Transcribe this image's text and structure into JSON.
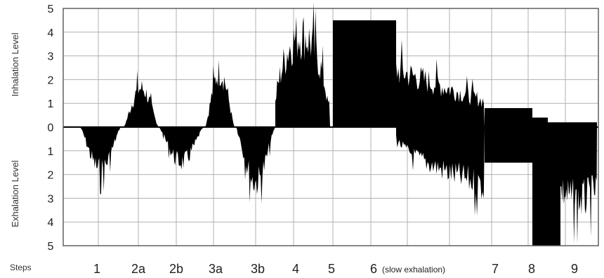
{
  "chart_data": {
    "type": "area",
    "ylabel_top": "Inhalation Level",
    "ylabel_bottom": "Exhalation Level",
    "xlabel": "Steps",
    "inhalation_ticks": [
      "5",
      "4",
      "3",
      "2",
      "1",
      "0"
    ],
    "exhalation_ticks": [
      "1",
      "2",
      "3",
      "4",
      "5"
    ],
    "ylim_inhalation": [
      0,
      5
    ],
    "ylim_exhalation": [
      0,
      5
    ],
    "grid": true,
    "steps": [
      {
        "label": "1",
        "note": ""
      },
      {
        "label": "2a",
        "note": ""
      },
      {
        "label": "2b",
        "note": ""
      },
      {
        "label": "3a",
        "note": ""
      },
      {
        "label": "3b",
        "note": ""
      },
      {
        "label": "4",
        "note": ""
      },
      {
        "label": "5",
        "note": ""
      },
      {
        "label": "6",
        "note": "(slow exhalation)"
      },
      {
        "label": "7",
        "note": ""
      },
      {
        "label": "8",
        "note": ""
      },
      {
        "label": "9",
        "note": ""
      }
    ],
    "segments": [
      {
        "step": "1",
        "direction": "exhalation",
        "peak": 2.3
      },
      {
        "step": "2a",
        "direction": "inhalation",
        "peak": 2.1
      },
      {
        "step": "2b",
        "direction": "exhalation",
        "peak": 1.9
      },
      {
        "step": "3a",
        "direction": "inhalation",
        "peak": 3.0
      },
      {
        "step": "3b",
        "direction": "exhalation",
        "peak": 3.0
      },
      {
        "step": "4",
        "direction": "inhalation",
        "peak": 5.0
      },
      {
        "step": "5",
        "direction": "inhalation",
        "peak": 4.5
      },
      {
        "step": "6",
        "direction": "inhalation",
        "start": 3.1,
        "end": 1.4
      },
      {
        "step": "6",
        "direction": "exhalation",
        "start": 0.5,
        "end": 3.2
      },
      {
        "step": "7",
        "direction": "inhalation",
        "level": 0.8
      },
      {
        "step": "7",
        "direction": "exhalation",
        "level": 1.5
      },
      {
        "step": "8",
        "direction": "exhalation",
        "peak": 5.0
      },
      {
        "step": "9",
        "direction": "exhalation",
        "peak": 4.0
      }
    ],
    "colors": {
      "fill": "#000000",
      "grid": "#b0b0b0",
      "frame": "#555555",
      "background": "#ffffff"
    }
  }
}
